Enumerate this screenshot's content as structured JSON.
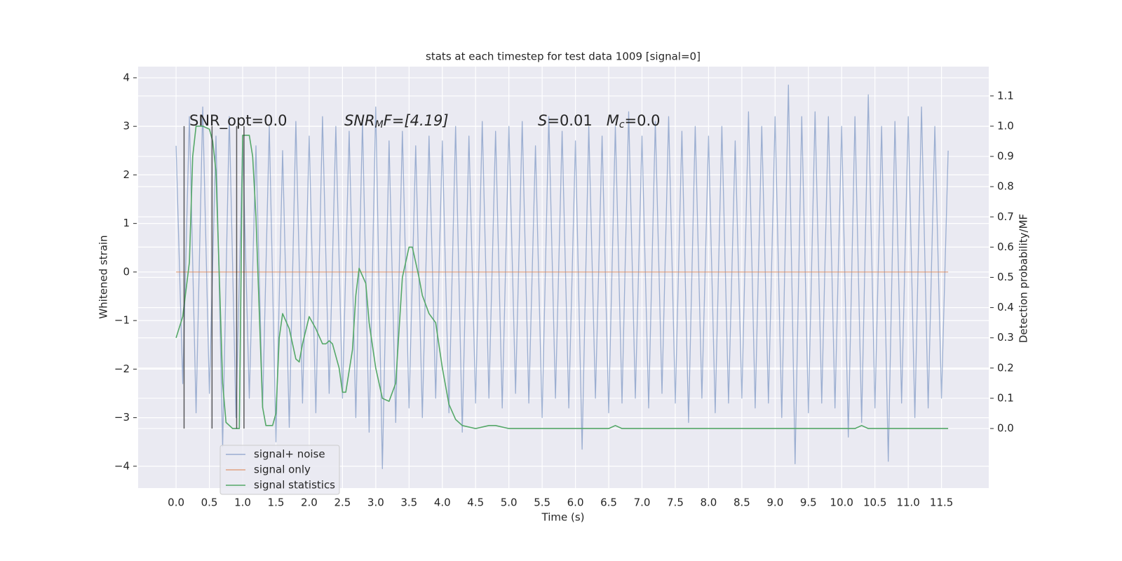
{
  "chart_data": {
    "type": "line",
    "title": "stats at each timestep for test data 1009 [signal=0]",
    "xlabel": "Time (s)",
    "ylabel": "Whitened strain",
    "y2label": "Detection probability/MF",
    "annotations": [
      {
        "parts": [
          "SNR_opt=0.0"
        ]
      },
      {
        "parts": [
          "SNR",
          "M",
          "F=[4.19]"
        ]
      },
      {
        "parts": [
          "S",
          "=0.01",
          "M",
          "c",
          "=0.0"
        ]
      }
    ],
    "xlim": [
      -0.57,
      12.21
    ],
    "ylim": [
      -4.45,
      4.23
    ],
    "y2lim": [
      -0.197,
      1.197
    ],
    "xticks": [
      {
        "value": 0,
        "label": "0.0"
      },
      0.5,
      {
        "value": 1,
        "label": "1.0"
      },
      1.5,
      {
        "value": 2,
        "label": "2.0"
      },
      2.5,
      {
        "value": 3,
        "label": "3.0"
      },
      3.5,
      {
        "value": 4,
        "label": "4.0"
      },
      4.5,
      {
        "value": 5,
        "label": "5.0"
      },
      5.5,
      {
        "value": 6,
        "label": "6.0"
      },
      6.5,
      {
        "value": 7,
        "label": "7.0"
      },
      7.5,
      {
        "value": 8,
        "label": "8.0"
      },
      8.5,
      {
        "value": 9,
        "label": "9.0"
      },
      9.5,
      {
        "value": 10,
        "label": "10.0"
      },
      10.5,
      {
        "value": 11,
        "label": "11.0"
      },
      11.5
    ],
    "yticks": [
      {
        "value": -4,
        "label": "−4"
      },
      {
        "value": -3,
        "label": "−3"
      },
      {
        "value": -2,
        "label": "−2"
      },
      {
        "value": -1,
        "label": "−1"
      },
      0,
      1,
      2,
      3,
      4
    ],
    "y2ticks": [
      {
        "value": 0,
        "label": "0.0"
      },
      0.1,
      0.2,
      0.3,
      0.4,
      0.5,
      0.6,
      0.7,
      0.8,
      0.9,
      {
        "value": 1,
        "label": "1.0"
      },
      1.1
    ],
    "grid": true,
    "legend": "lower left",
    "vlines": [
      0.12,
      0.54,
      0.91,
      1.02
    ],
    "vline_span": [
      0,
      1
    ],
    "vline_color": "#333333",
    "series": [
      {
        "name": "signal+ noise",
        "color": "#4c72b0",
        "axis": "y",
        "x": [
          0,
          0.1,
          0.2,
          0.3,
          0.4,
          0.5,
          0.6,
          0.7,
          0.8,
          0.9,
          1,
          1.1,
          1.2,
          1.3,
          1.4,
          1.5,
          1.6,
          1.7,
          1.8,
          1.9,
          2,
          2.1,
          2.2,
          2.3,
          2.4,
          2.5,
          2.6,
          2.7,
          2.8,
          2.9,
          3,
          3.1,
          3.2,
          3.3,
          3.4,
          3.5,
          3.6,
          3.7,
          3.8,
          3.9,
          4,
          4.1,
          4.2,
          4.3,
          4.4,
          4.5,
          4.6,
          4.7,
          4.8,
          4.9,
          5,
          5.1,
          5.2,
          5.3,
          5.4,
          5.5,
          5.6,
          5.7,
          5.8,
          5.9,
          6,
          6.1,
          6.2,
          6.3,
          6.4,
          6.5,
          6.6,
          6.7,
          6.8,
          6.9,
          7,
          7.1,
          7.2,
          7.3,
          7.4,
          7.5,
          7.6,
          7.7,
          7.8,
          7.9,
          8,
          8.1,
          8.2,
          8.3,
          8.4,
          8.5,
          8.6,
          8.7,
          8.8,
          8.9,
          9,
          9.1,
          9.2,
          9.3,
          9.4,
          9.5,
          9.6,
          9.7,
          9.8,
          9.9,
          10,
          10.1,
          10.2,
          10.3,
          10.4,
          10.5,
          10.6,
          10.7,
          10.8,
          10.9,
          11,
          11.1,
          11.2,
          11.3,
          11.4,
          11.5,
          11.6
        ],
        "values": [
          2.6,
          -2.3,
          3.2,
          -2.9,
          3.4,
          -2.5,
          2.8,
          -3.6,
          3.2,
          -3.0,
          2.7,
          -2.6,
          2.6,
          -2.8,
          3.0,
          -3.5,
          2.5,
          -3.2,
          3.1,
          -2.7,
          2.8,
          -2.9,
          3.2,
          -2.5,
          3.0,
          -2.6,
          2.9,
          -3.0,
          3.1,
          -3.3,
          3.4,
          -4.05,
          2.7,
          -3.1,
          2.9,
          -2.8,
          2.6,
          -3.0,
          2.8,
          -2.6,
          2.7,
          -2.9,
          3.0,
          -3.3,
          2.8,
          -2.7,
          3.1,
          -2.6,
          2.9,
          -2.8,
          3.0,
          -2.5,
          3.1,
          -2.7,
          2.6,
          -3.0,
          3.2,
          -2.6,
          2.9,
          -2.8,
          2.7,
          -3.65,
          3.0,
          -2.6,
          2.8,
          -2.9,
          3.0,
          -2.7,
          3.3,
          -2.6,
          2.8,
          -2.8,
          3.1,
          -2.5,
          3.2,
          -2.7,
          2.9,
          -3.1,
          3.0,
          -2.6,
          2.8,
          -2.9,
          3.0,
          -2.7,
          2.7,
          -2.6,
          3.3,
          -2.8,
          3.0,
          -2.7,
          3.2,
          -3.0,
          3.85,
          -3.95,
          3.2,
          -2.9,
          3.3,
          -2.7,
          3.2,
          -2.8,
          3.0,
          -3.4,
          3.2,
          -3.1,
          3.65,
          -2.8,
          3.0,
          -3.9,
          3.1,
          -2.7,
          3.2,
          -3.0,
          3.4,
          -2.8,
          3.0,
          -2.6,
          2.5
        ]
      },
      {
        "name": "signal only",
        "color": "#dd8452",
        "axis": "y",
        "x": [
          0,
          11.6
        ],
        "values": [
          0,
          0
        ]
      },
      {
        "name": "signal statistics",
        "color": "#55a868",
        "axis": "y2",
        "x": [
          0,
          0.1,
          0.2,
          0.25,
          0.3,
          0.4,
          0.5,
          0.55,
          0.6,
          0.65,
          0.7,
          0.75,
          0.85,
          0.95,
          1,
          1.1,
          1.15,
          1.2,
          1.3,
          1.35,
          1.45,
          1.5,
          1.55,
          1.6,
          1.7,
          1.8,
          1.85,
          1.9,
          2,
          2.1,
          2.2,
          2.25,
          2.3,
          2.35,
          2.45,
          2.5,
          2.55,
          2.65,
          2.7,
          2.75,
          2.85,
          2.9,
          3,
          3.1,
          3.2,
          3.3,
          3.4,
          3.5,
          3.55,
          3.65,
          3.7,
          3.8,
          3.9,
          4,
          4.1,
          4.2,
          4.3,
          4.5,
          4.7,
          4.8,
          5,
          6,
          6.5,
          6.6,
          6.7,
          8,
          10,
          10.2,
          10.3,
          10.4,
          10.6,
          11.6
        ],
        "values": [
          0.3,
          0.37,
          0.55,
          0.9,
          1,
          1,
          0.99,
          0.95,
          0.85,
          0.5,
          0.15,
          0.02,
          0,
          0,
          0.97,
          0.97,
          0.9,
          0.7,
          0.07,
          0.01,
          0.01,
          0.05,
          0.3,
          0.38,
          0.33,
          0.23,
          0.22,
          0.28,
          0.37,
          0.33,
          0.28,
          0.28,
          0.29,
          0.28,
          0.2,
          0.12,
          0.12,
          0.26,
          0.44,
          0.53,
          0.48,
          0.35,
          0.2,
          0.1,
          0.09,
          0.15,
          0.5,
          0.6,
          0.6,
          0.5,
          0.44,
          0.38,
          0.35,
          0.2,
          0.08,
          0.03,
          0.01,
          0,
          0.01,
          0.01,
          0,
          0,
          0,
          0.01,
          0,
          0,
          0,
          0,
          0.01,
          0,
          0,
          0
        ]
      }
    ]
  }
}
